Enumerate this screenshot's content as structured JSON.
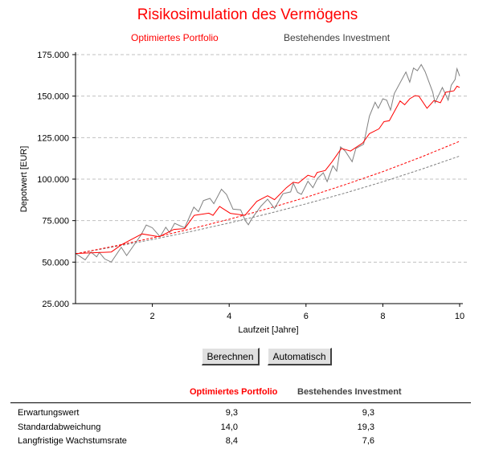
{
  "chart_data": {
    "type": "line",
    "title": "Risikosimulation des Vermögens",
    "xlabel": "Laufzeit [Jahre]",
    "ylabel": "Depotwert [EUR]",
    "xlim": [
      0,
      10
    ],
    "ylim": [
      25000,
      175000
    ],
    "xticks": [
      2,
      4,
      6,
      8,
      10
    ],
    "yticks": [
      25000,
      50000,
      75000,
      100000,
      125000,
      150000,
      175000
    ],
    "ytick_labels": [
      "25.000",
      "50.000",
      "75.000",
      "100.000",
      "125.000",
      "150.000",
      "175.000"
    ],
    "grid": "horizontal dashed",
    "legend_placement": "top",
    "series": [
      {
        "name": "Optimiertes Portfolio",
        "color": "#ff0000",
        "style": "solid",
        "x": [
          0,
          0.93,
          1.2,
          1.73,
          2.18,
          2.56,
          2.84,
          3.09,
          3.47,
          3.58,
          3.75,
          4.03,
          4.41,
          4.72,
          5.0,
          5.18,
          5.49,
          5.67,
          5.8,
          6.05,
          6.22,
          6.29,
          6.5,
          6.68,
          6.92,
          7.16,
          7.48,
          7.65,
          7.9,
          8.03,
          8.17,
          8.45,
          8.57,
          8.7,
          8.84,
          8.94,
          9.15,
          9.33,
          9.5,
          9.64,
          9.85,
          9.93,
          10
        ],
        "y": [
          55200,
          56100,
          60500,
          67000,
          65300,
          69700,
          70200,
          78200,
          79500,
          78200,
          83500,
          79400,
          78200,
          86600,
          90000,
          87600,
          94800,
          98100,
          97600,
          102300,
          101100,
          104000,
          105200,
          110500,
          118500,
          116900,
          121800,
          127400,
          130300,
          134600,
          135200,
          147100,
          144800,
          148400,
          150300,
          150000,
          142700,
          147300,
          146000,
          152400,
          153200,
          156000,
          155200
        ]
      },
      {
        "name": "Bestehendes Investment",
        "color": "#808080",
        "style": "solid",
        "x": [
          0,
          0.25,
          0.4,
          0.55,
          0.62,
          0.76,
          0.93,
          1.19,
          1.33,
          1.7,
          1.84,
          2.0,
          2.2,
          2.35,
          2.45,
          2.58,
          2.84,
          3.08,
          3.2,
          3.33,
          3.5,
          3.6,
          3.8,
          3.93,
          4.1,
          4.3,
          4.42,
          4.5,
          4.6,
          4.83,
          5.0,
          5.18,
          5.4,
          5.6,
          5.67,
          5.78,
          5.88,
          6.05,
          6.18,
          6.3,
          6.45,
          6.55,
          6.7,
          6.8,
          6.9,
          7.02,
          7.2,
          7.3,
          7.5,
          7.65,
          7.8,
          7.88,
          8.0,
          8.1,
          8.2,
          8.3,
          8.6,
          8.7,
          8.8,
          8.9,
          9.0,
          9.1,
          9.3,
          9.36,
          9.55,
          9.7,
          9.78,
          9.88,
          9.93,
          10
        ],
        "y": [
          55200,
          51300,
          56100,
          53200,
          55800,
          51900,
          50000,
          58900,
          54000,
          66200,
          72300,
          70700,
          65300,
          71000,
          67800,
          73400,
          70700,
          83100,
          80400,
          87100,
          88400,
          85200,
          93900,
          90700,
          81900,
          81500,
          75000,
          72500,
          76600,
          83800,
          87900,
          82300,
          91200,
          92300,
          97600,
          92000,
          90800,
          98700,
          94800,
          100400,
          103800,
          98500,
          108100,
          104800,
          119400,
          116900,
          110500,
          118500,
          121000,
          137900,
          146300,
          142700,
          148400,
          147600,
          141600,
          151600,
          164500,
          158400,
          166900,
          165300,
          169000,
          164800,
          152400,
          146000,
          155200,
          147600,
          156500,
          160000,
          166500,
          162100
        ]
      },
      {
        "color": "#ff0000",
        "style": "dashed",
        "x": [
          0,
          1,
          2,
          3,
          4,
          5,
          6,
          7,
          8,
          9,
          10
        ],
        "y": [
          55000,
          59600,
          64600,
          70000,
          75800,
          82200,
          89000,
          96500,
          104500,
          113300,
          122800
        ]
      },
      {
        "color": "#808080",
        "style": "dashed",
        "x": [
          0,
          1,
          2,
          3,
          4,
          5,
          6,
          7,
          8,
          9,
          10
        ],
        "y": [
          55000,
          59200,
          63600,
          68400,
          73600,
          79100,
          85100,
          91500,
          98400,
          105900,
          113900
        ]
      }
    ]
  },
  "legend": {
    "optimized": "Optimiertes Portfolio",
    "existing": "Bestehendes Investment"
  },
  "buttons": {
    "calculate": "Berechnen",
    "auto": "Automatisch"
  },
  "table": {
    "headers": [
      "Optimiertes Portfolio",
      "Bestehendes Investment"
    ],
    "header_colors": [
      "#ff0000",
      "#404040"
    ],
    "rows": [
      {
        "label": "Erwartungswert",
        "optimized": "9,3",
        "existing": "9,3"
      },
      {
        "label": "Standardabweichung",
        "optimized": "14,0",
        "existing": "19,3"
      },
      {
        "label": "Langfristige Wachstumsrate",
        "optimized": "8,4",
        "existing": "7,6"
      }
    ]
  }
}
